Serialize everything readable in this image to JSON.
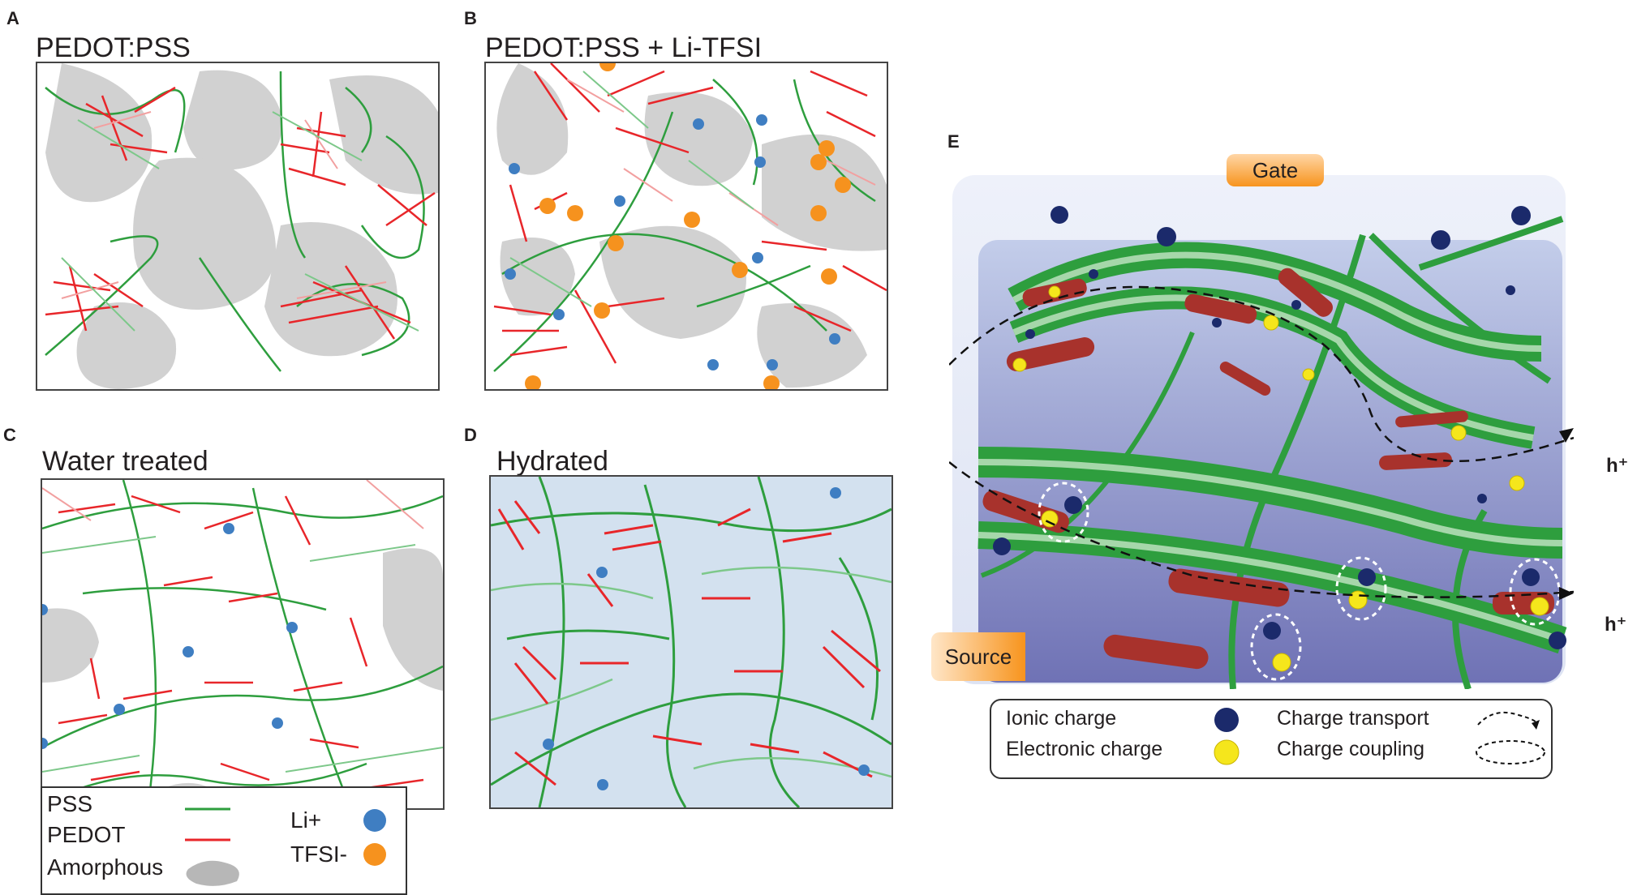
{
  "panels": {
    "a": {
      "letter": "A",
      "title": "PEDOT:PSS"
    },
    "b": {
      "letter": "B",
      "title": "PEDOT:PSS + Li-TFSI"
    },
    "c": {
      "letter": "C",
      "title": "Water treated"
    },
    "d": {
      "letter": "D",
      "title": "Hydrated"
    },
    "e": {
      "letter": "E"
    }
  },
  "legend": {
    "pss": "PSS",
    "pedot": "PEDOT",
    "amorphous": "Amorphous",
    "li": "Li+",
    "tfsi": "TFSI-"
  },
  "e_labels": {
    "gate": "Gate",
    "source": "Source",
    "h_plus": "h⁺"
  },
  "e_legend": {
    "ionic": "Ionic charge",
    "electronic": "Electronic charge",
    "transport": "Charge transport",
    "coupling": "Charge coupling"
  },
  "colors": {
    "pss": "#2e9e3e",
    "pedot": "#e8262a",
    "amorphous": "#c6c6c6",
    "li": "#3f7ec2",
    "tfsi": "#f6921e",
    "ionic": "#1b2a6b",
    "electronic": "#f5e61c",
    "hydrated_bg": "#d3e1ef"
  }
}
